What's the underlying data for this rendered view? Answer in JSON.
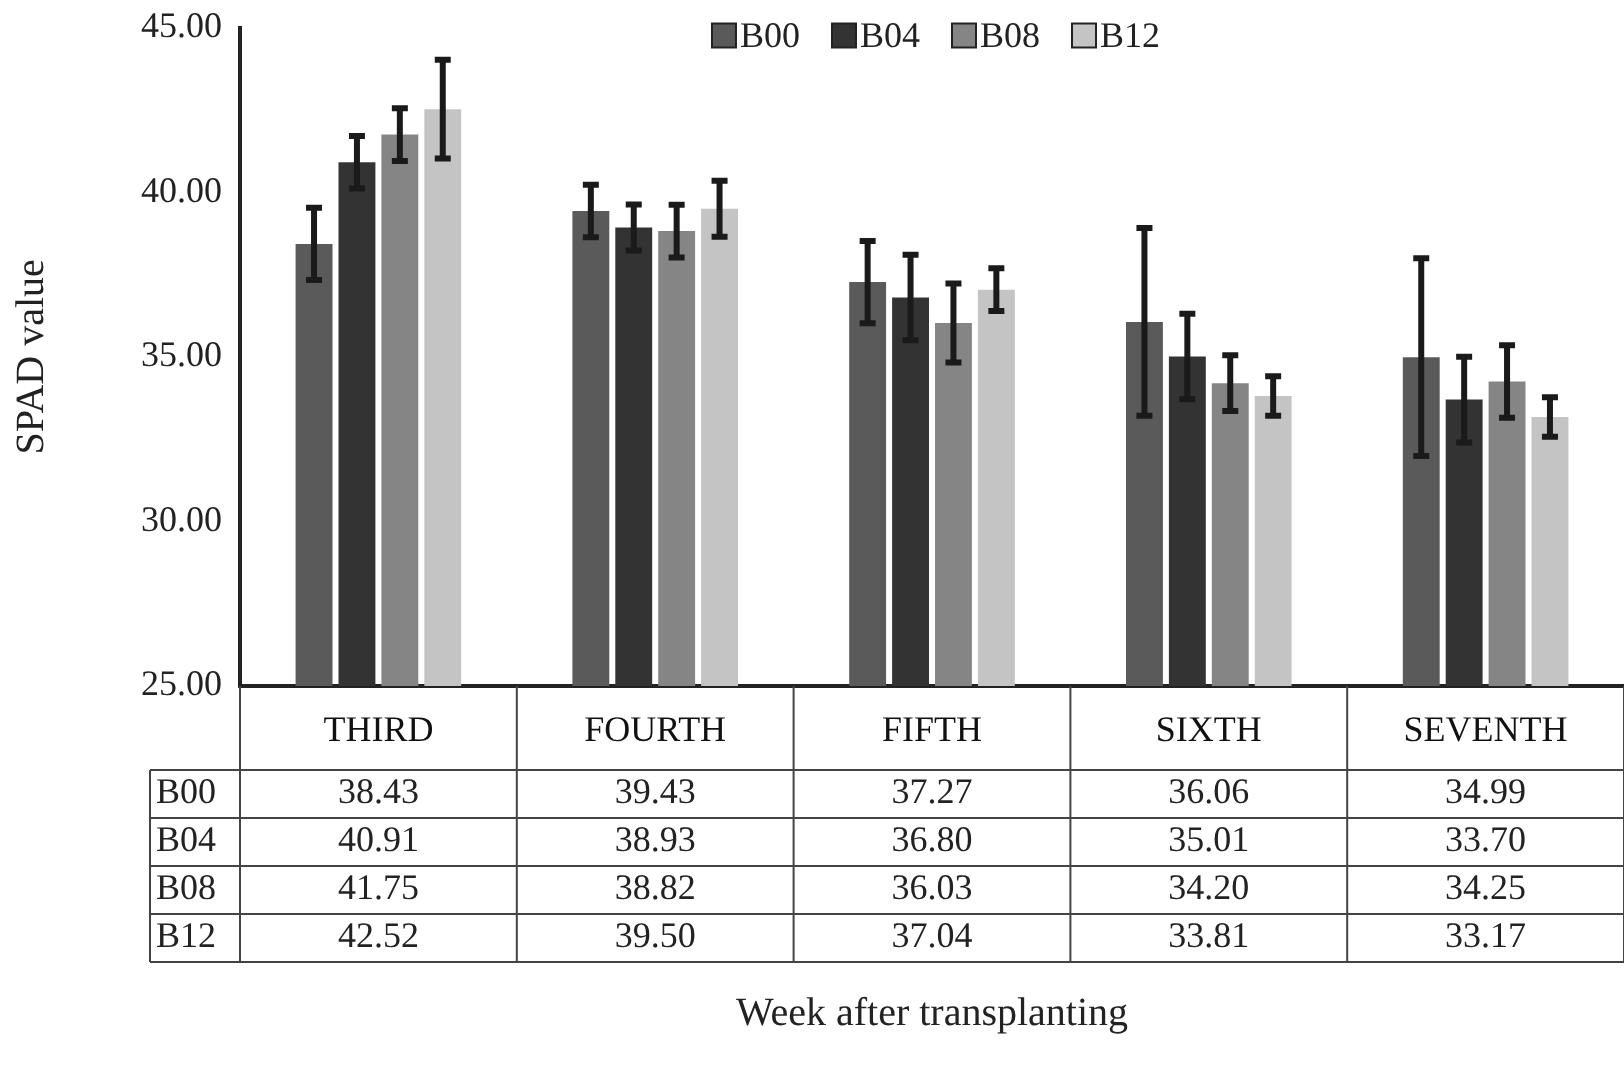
{
  "chart_data": {
    "type": "bar",
    "annotations": [
      "Week after transplanting"
    ],
    "ylabel": "SPAD value",
    "categories": [
      "THIRD",
      "FOURTH",
      "FIFTH",
      "SIXTH",
      "SEVENTH"
    ],
    "series": [
      {
        "name": "B00",
        "color": "#5a5a5a",
        "values": [
          38.43,
          39.43,
          37.27,
          36.06,
          34.99
        ],
        "value_labels": [
          "38.43",
          "39.43",
          "37.27",
          "36.06",
          "34.99"
        ],
        "errors": [
          1.1,
          0.8,
          1.25,
          2.85,
          3.0
        ]
      },
      {
        "name": "B04",
        "color": "#333333",
        "values": [
          40.91,
          38.93,
          36.8,
          35.01,
          33.7
        ],
        "value_labels": [
          "40.91",
          "38.93",
          "36.80",
          "35.01",
          "33.70"
        ],
        "errors": [
          0.8,
          0.7,
          1.3,
          1.3,
          1.3
        ]
      },
      {
        "name": "B08",
        "color": "#858585",
        "values": [
          41.75,
          38.82,
          36.03,
          34.2,
          34.25
        ],
        "value_labels": [
          "41.75",
          "38.82",
          "36.03",
          "34.20",
          "34.25"
        ],
        "errors": [
          0.8,
          0.8,
          1.2,
          0.85,
          1.1
        ]
      },
      {
        "name": "B12",
        "color": "#c4c4c4",
        "values": [
          42.52,
          39.5,
          37.04,
          33.81,
          33.17
        ],
        "value_labels": [
          "42.52",
          "39.50",
          "37.04",
          "33.81",
          "33.17"
        ],
        "errors": [
          1.5,
          0.85,
          0.65,
          0.6,
          0.6
        ]
      }
    ],
    "ylim": [
      25,
      45
    ],
    "yticks": [
      {
        "value": 25,
        "label": "25.00"
      },
      {
        "value": 30,
        "label": "30.00"
      },
      {
        "value": 35,
        "label": "35.00"
      },
      {
        "value": 40,
        "label": "40.00"
      },
      {
        "value": 45,
        "label": "45.00"
      }
    ],
    "grid": false,
    "legend": "top"
  }
}
